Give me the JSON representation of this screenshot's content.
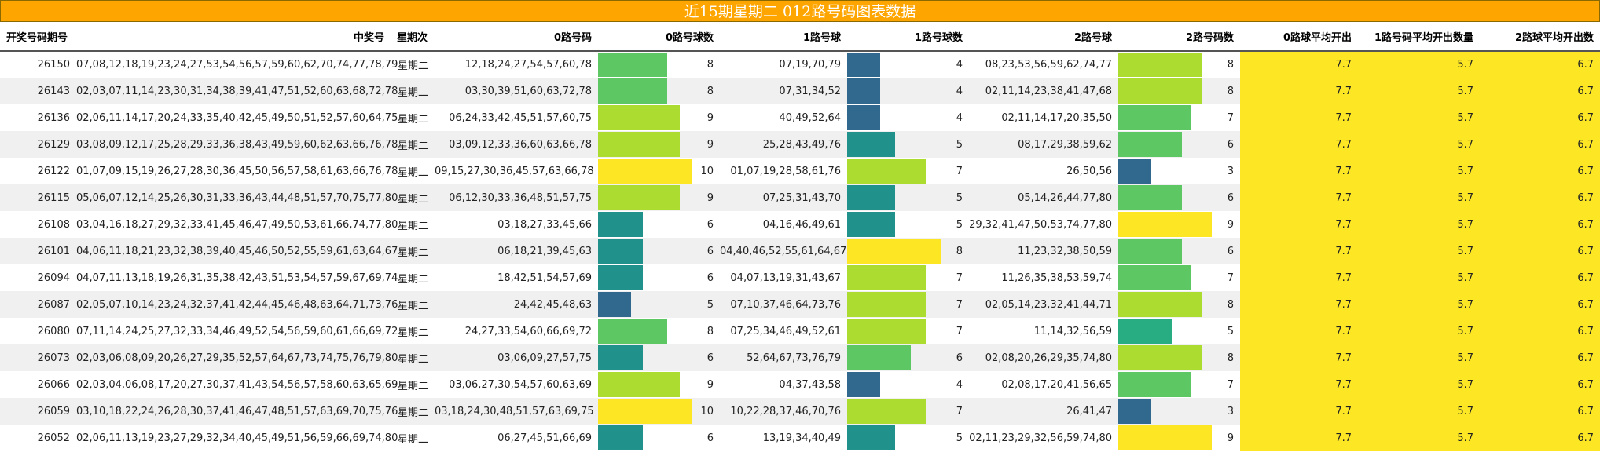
{
  "title": "近15期星期二 012路号码图表数据",
  "headers": [
    "开奖号码期号",
    "中奖号",
    "星期次",
    "0路号码",
    "0路号球数",
    "1路号球",
    "1路号球数",
    "2路号球",
    "2路号码数",
    "0路球平均开出",
    "1路号码平均开出数量",
    "2路球平均开出数"
  ],
  "rows": [
    {
      "issue": "26150",
      "numbers": "07,08,12,18,19,23,24,27,53,54,56,57,59,60,62,70,74,77,78,79",
      "weekday": "星期二",
      "r0": "12,18,24,27,54,57,60,78",
      "c0": 8,
      "r1": "07,19,70,79",
      "c1": 4,
      "r2": "08,23,53,56,59,62,74,77",
      "c2": 8,
      "a0": "7.7",
      "a1": "5.7",
      "a2": "6.7"
    },
    {
      "issue": "26143",
      "numbers": "02,03,07,11,14,23,30,31,34,38,39,41,47,51,52,60,63,68,72,78",
      "weekday": "星期二",
      "r0": "03,30,39,51,60,63,72,78",
      "c0": 8,
      "r1": "07,31,34,52",
      "c1": 4,
      "r2": "02,11,14,23,38,41,47,68",
      "c2": 8,
      "a0": "7.7",
      "a1": "5.7",
      "a2": "6.7"
    },
    {
      "issue": "26136",
      "numbers": "02,06,11,14,17,20,24,33,35,40,42,45,49,50,51,52,57,60,64,75",
      "weekday": "星期二",
      "r0": "06,24,33,42,45,51,57,60,75",
      "c0": 9,
      "r1": "40,49,52,64",
      "c1": 4,
      "r2": "02,11,14,17,20,35,50",
      "c2": 7,
      "a0": "7.7",
      "a1": "5.7",
      "a2": "6.7"
    },
    {
      "issue": "26129",
      "numbers": "03,08,09,12,17,25,28,29,33,36,38,43,49,59,60,62,63,66,76,78",
      "weekday": "星期二",
      "r0": "03,09,12,33,36,60,63,66,78",
      "c0": 9,
      "r1": "25,28,43,49,76",
      "c1": 5,
      "r2": "08,17,29,38,59,62",
      "c2": 6,
      "a0": "7.7",
      "a1": "5.7",
      "a2": "6.7"
    },
    {
      "issue": "26122",
      "numbers": "01,07,09,15,19,26,27,28,30,36,45,50,56,57,58,61,63,66,76,78",
      "weekday": "星期二",
      "r0": "09,15,27,30,36,45,57,63,66,78",
      "c0": 10,
      "r1": "01,07,19,28,58,61,76",
      "c1": 7,
      "r2": "26,50,56",
      "c2": 3,
      "a0": "7.7",
      "a1": "5.7",
      "a2": "6.7"
    },
    {
      "issue": "26115",
      "numbers": "05,06,07,12,14,25,26,30,31,33,36,43,44,48,51,57,70,75,77,80",
      "weekday": "星期二",
      "r0": "06,12,30,33,36,48,51,57,75",
      "c0": 9,
      "r1": "07,25,31,43,70",
      "c1": 5,
      "r2": "05,14,26,44,77,80",
      "c2": 6,
      "a0": "7.7",
      "a1": "5.7",
      "a2": "6.7"
    },
    {
      "issue": "26108",
      "numbers": "03,04,16,18,27,29,32,33,41,45,46,47,49,50,53,61,66,74,77,80",
      "weekday": "星期二",
      "r0": "03,18,27,33,45,66",
      "c0": 6,
      "r1": "04,16,46,49,61",
      "c1": 5,
      "r2": "29,32,41,47,50,53,74,77,80",
      "c2": 9,
      "a0": "7.7",
      "a1": "5.7",
      "a2": "6.7"
    },
    {
      "issue": "26101",
      "numbers": "04,06,11,18,21,23,32,38,39,40,45,46,50,52,55,59,61,63,64,67",
      "weekday": "星期二",
      "r0": "06,18,21,39,45,63",
      "c0": 6,
      "r1": "04,40,46,52,55,61,64,67",
      "c1": 8,
      "r2": "11,23,32,38,50,59",
      "c2": 6,
      "a0": "7.7",
      "a1": "5.7",
      "a2": "6.7"
    },
    {
      "issue": "26094",
      "numbers": "04,07,11,13,18,19,26,31,35,38,42,43,51,53,54,57,59,67,69,74",
      "weekday": "星期二",
      "r0": "18,42,51,54,57,69",
      "c0": 6,
      "r1": "04,07,13,19,31,43,67",
      "c1": 7,
      "r2": "11,26,35,38,53,59,74",
      "c2": 7,
      "a0": "7.7",
      "a1": "5.7",
      "a2": "6.7"
    },
    {
      "issue": "26087",
      "numbers": "02,05,07,10,14,23,24,32,37,41,42,44,45,46,48,63,64,71,73,76",
      "weekday": "星期二",
      "r0": "24,42,45,48,63",
      "c0": 5,
      "r1": "07,10,37,46,64,73,76",
      "c1": 7,
      "r2": "02,05,14,23,32,41,44,71",
      "c2": 8,
      "a0": "7.7",
      "a1": "5.7",
      "a2": "6.7"
    },
    {
      "issue": "26080",
      "numbers": "07,11,14,24,25,27,32,33,34,46,49,52,54,56,59,60,61,66,69,72",
      "weekday": "星期二",
      "r0": "24,27,33,54,60,66,69,72",
      "c0": 8,
      "r1": "07,25,34,46,49,52,61",
      "c1": 7,
      "r2": "11,14,32,56,59",
      "c2": 5,
      "a0": "7.7",
      "a1": "5.7",
      "a2": "6.7"
    },
    {
      "issue": "26073",
      "numbers": "02,03,06,08,09,20,26,27,29,35,52,57,64,67,73,74,75,76,79,80",
      "weekday": "星期二",
      "r0": "03,06,09,27,57,75",
      "c0": 6,
      "r1": "52,64,67,73,76,79",
      "c1": 6,
      "r2": "02,08,20,26,29,35,74,80",
      "c2": 8,
      "a0": "7.7",
      "a1": "5.7",
      "a2": "6.7"
    },
    {
      "issue": "26066",
      "numbers": "02,03,04,06,08,17,20,27,30,37,41,43,54,56,57,58,60,63,65,69",
      "weekday": "星期二",
      "r0": "03,06,27,30,54,57,60,63,69",
      "c0": 9,
      "r1": "04,37,43,58",
      "c1": 4,
      "r2": "02,08,17,20,41,56,65",
      "c2": 7,
      "a0": "7.7",
      "a1": "5.7",
      "a2": "6.7"
    },
    {
      "issue": "26059",
      "numbers": "03,10,18,22,24,26,28,30,37,41,46,47,48,51,57,63,69,70,75,76",
      "weekday": "星期二",
      "r0": "03,18,24,30,48,51,57,63,69,75",
      "c0": 10,
      "r1": "10,22,28,37,46,70,76",
      "c1": 7,
      "r2": "26,41,47",
      "c2": 3,
      "a0": "7.7",
      "a1": "5.7",
      "a2": "6.7"
    },
    {
      "issue": "26052",
      "numbers": "02,06,11,13,19,23,27,29,32,34,40,45,49,51,56,59,66,69,74,80",
      "weekday": "星期二",
      "r0": "06,27,45,51,66,69",
      "c0": 6,
      "r1": "13,19,34,40,49",
      "c1": 5,
      "r2": "02,11,23,29,32,56,59,74,80",
      "c2": 9,
      "a0": "7.7",
      "a1": "5.7",
      "a2": "6.7"
    }
  ],
  "scale": {
    "c0": {
      "min": 5,
      "max": 10
    },
    "c1": {
      "min": 4,
      "max": 8
    },
    "c2": {
      "min": 3,
      "max": 9
    }
  },
  "colors": {
    "title_bg": "#ffa500",
    "avg_bg": "#fde725",
    "viridis": [
      "#31688e",
      "#21918c",
      "#27ad81",
      "#5dc863",
      "#addc30",
      "#fde725"
    ]
  }
}
